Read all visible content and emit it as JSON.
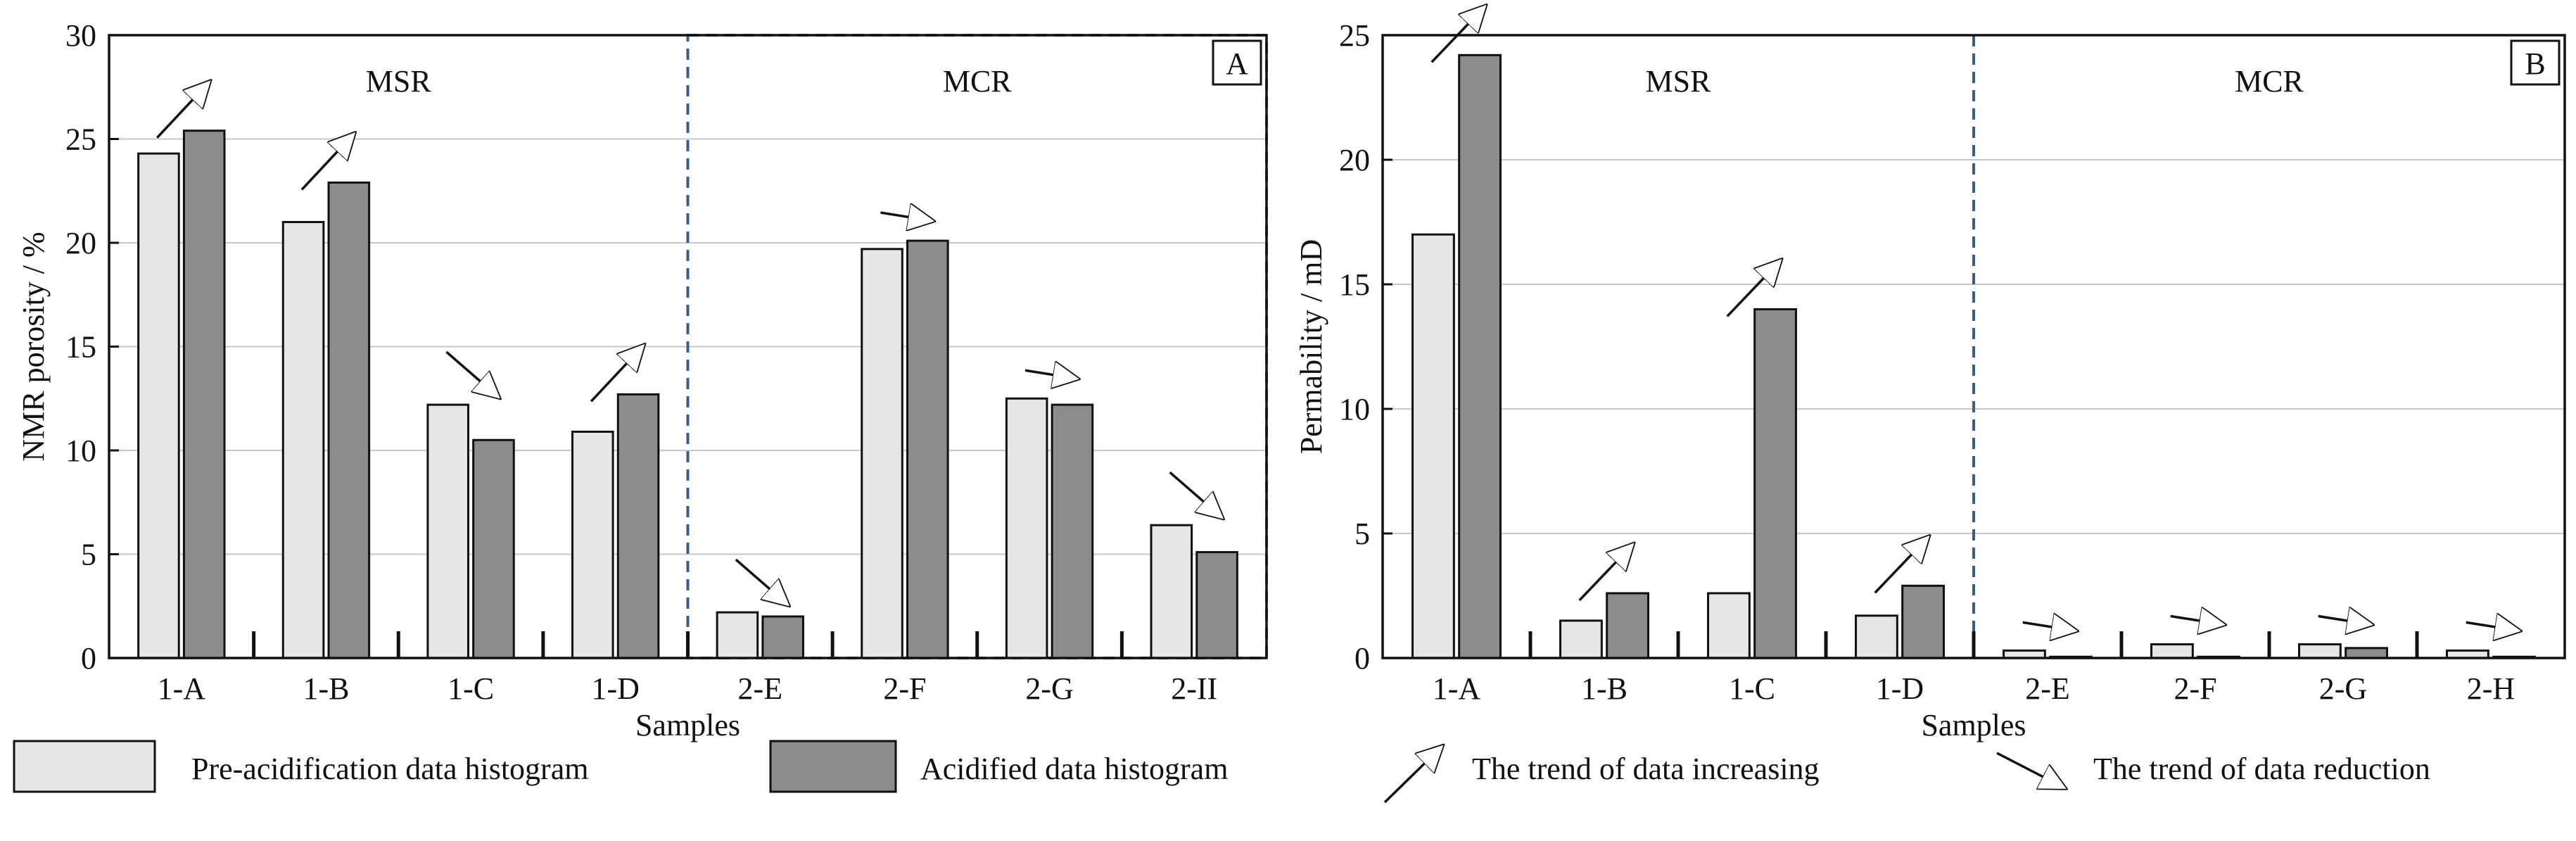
{
  "chart_data": [
    {
      "type": "bar",
      "panel_label": "A",
      "title": "",
      "xlabel": "Samples",
      "ylabel": "NMR porosity / %",
      "ylim": [
        0,
        30
      ],
      "yticks": [
        0,
        5,
        10,
        15,
        20,
        25,
        30
      ],
      "grid": true,
      "categories": [
        "1-A",
        "1-B",
        "1-C",
        "1-D",
        "2-E",
        "2-F",
        "2-G",
        "2-II"
      ],
      "series": [
        {
          "key": "pre",
          "values": [
            24.3,
            21.0,
            12.2,
            10.9,
            2.2,
            19.7,
            12.5,
            6.4
          ]
        },
        {
          "key": "acid",
          "values": [
            25.4,
            22.9,
            10.5,
            12.7,
            2.0,
            20.1,
            12.2,
            5.1
          ]
        }
      ],
      "trend": [
        "up",
        "up",
        "down",
        "up",
        "down",
        "flat",
        "flat",
        "down"
      ],
      "groups": [
        {
          "label": "MSR",
          "from": 0,
          "to": 3
        },
        {
          "label": "MCR",
          "from": 4,
          "to": 7
        }
      ]
    },
    {
      "type": "bar",
      "panel_label": "B",
      "title": "",
      "xlabel": "Samples",
      "ylabel": "Permability / mD",
      "ylim": [
        0,
        25
      ],
      "yticks": [
        0,
        5,
        10,
        15,
        20,
        25
      ],
      "grid": true,
      "categories": [
        "1-A",
        "1-B",
        "1-C",
        "1-D",
        "2-E",
        "2-F",
        "2-G",
        "2-H"
      ],
      "series": [
        {
          "key": "pre",
          "values": [
            17.0,
            1.5,
            2.6,
            1.7,
            0.3,
            0.55,
            0.55,
            0.3
          ]
        },
        {
          "key": "acid",
          "values": [
            24.2,
            2.6,
            14.0,
            2.9,
            0.05,
            0.05,
            0.4,
            0.05
          ]
        }
      ],
      "trend": [
        "up",
        "up",
        "up",
        "up",
        "flat",
        "flat",
        "flat",
        "flat"
      ],
      "groups": [
        {
          "label": "MSR",
          "from": 0,
          "to": 3
        },
        {
          "label": "MCR",
          "from": 4,
          "to": 7
        }
      ]
    }
  ],
  "legend": {
    "placement": "bottom",
    "items": [
      {
        "label": "Pre-acidification data histogram",
        "kind": "bar",
        "color": "#e6e6e6"
      },
      {
        "label": "Acidified data histogram",
        "kind": "bar",
        "color": "#8c8c8c"
      },
      {
        "label": "The trend of  data increasing",
        "kind": "arrow-up"
      },
      {
        "label": "The trend of  data reduction",
        "kind": "arrow-down"
      }
    ]
  },
  "colors": {
    "pre_bar": "#e6e6e6",
    "acid_bar": "#8c8c8c",
    "bar_stroke": "#111111",
    "grid": "#c8c8c8",
    "group_frame": "#3a5e8c"
  }
}
